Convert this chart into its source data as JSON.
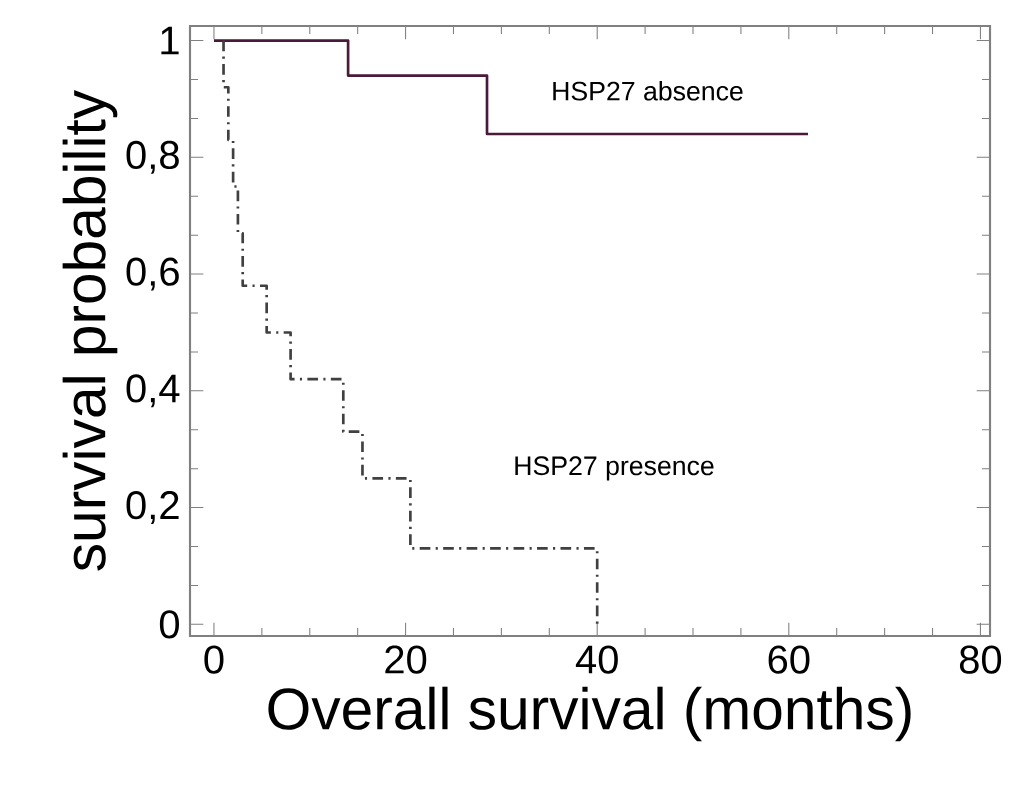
{
  "chart_data": {
    "type": "step",
    "xlabel": "Overall survival (months)",
    "ylabel": "survival probability",
    "series": [
      {
        "name": "HSP27 absence",
        "color": "#4a1a3a",
        "line_style": "solid",
        "x": [
          0,
          14,
          28.5,
          62
        ],
        "values": [
          1,
          0.94,
          0.84,
          0.84
        ]
      },
      {
        "name": "HSP27 presence",
        "color": "#404040",
        "line_style": "dashdot",
        "x": [
          1,
          1,
          1.5,
          2,
          2.5,
          3,
          5.5,
          8,
          13.5,
          15.5,
          20.5,
          40
        ],
        "values": [
          1,
          0.92,
          0.83,
          0.75,
          0.67,
          0.58,
          0.5,
          0.42,
          0.33,
          0.25,
          0.13,
          0
        ]
      }
    ],
    "xlim": [
      -2.5,
      81
    ],
    "ylim": [
      -0.02,
      1.025
    ],
    "xticks": [
      0,
      20,
      40,
      60,
      80
    ],
    "yticks": [
      0,
      {
        "value": 0.2,
        "label": "0,2"
      },
      {
        "value": 0.4,
        "label": "0,4"
      },
      {
        "value": 0.6,
        "label": "0,6"
      },
      {
        "value": 0.8,
        "label": "0,8"
      },
      1
    ],
    "grid": false,
    "marker": "none"
  }
}
